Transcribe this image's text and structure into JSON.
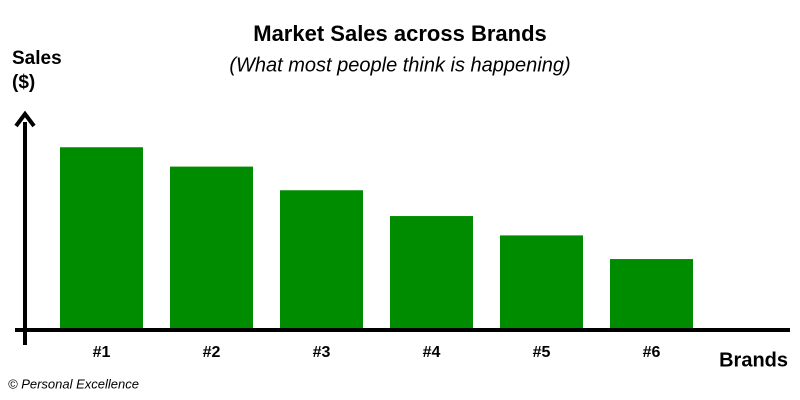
{
  "chart_data": {
    "type": "bar",
    "title": "Market Sales across Brands",
    "subtitle": "(What most people think is happening)",
    "y_label": "Sales ($)",
    "x_label": "Brands",
    "source": "© Personal Excellence",
    "categories": [
      "#1",
      "#2",
      "#3",
      "#4",
      "#5",
      "#6"
    ],
    "values": [
      85,
      76,
      65,
      53,
      44,
      33
    ],
    "color": "#008c00",
    "ylim": [
      0,
      100
    ]
  }
}
